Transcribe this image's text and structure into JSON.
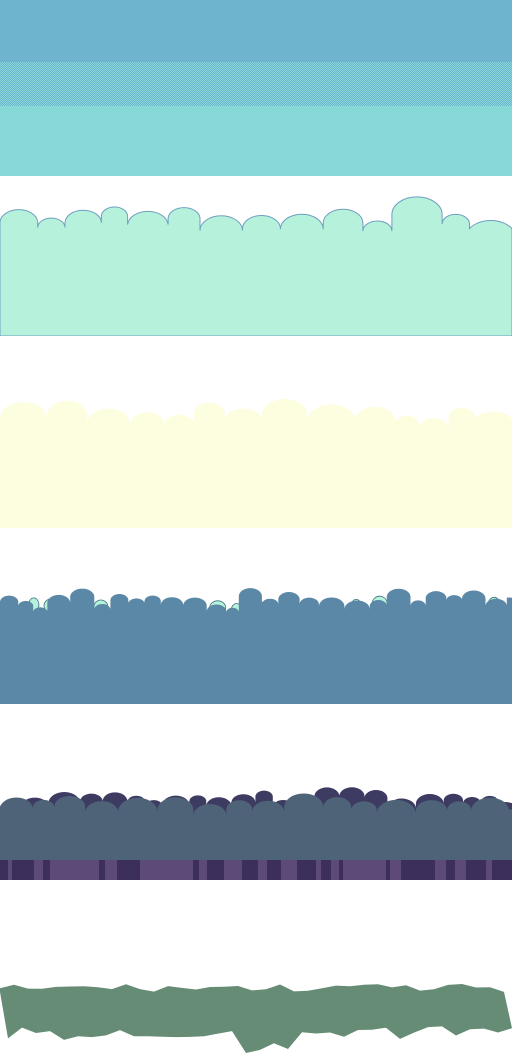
{
  "sheet": {
    "layers": [
      {
        "name": "sky",
        "colors": {
          "top": "#6fb4cf",
          "bottom": "#87d9d8"
        }
      },
      {
        "name": "clouds-front",
        "colors": {
          "fill": "#b6f2db",
          "outline": "#6e9fc0"
        }
      },
      {
        "name": "clouds-back",
        "colors": {
          "fill": "#fdfde0"
        }
      },
      {
        "name": "mountains",
        "colors": {
          "fill": "#5b88a6",
          "snow": "#b6f2db",
          "outline": "#3f6f7e"
        }
      },
      {
        "name": "forest",
        "colors": {
          "back": "#3e3b63",
          "mid": "#4e6378",
          "trunks": "#5d4a78",
          "trunks_dark": "#3c2f5c"
        }
      },
      {
        "name": "bushes",
        "colors": {
          "fill": "#668c76"
        }
      }
    ]
  }
}
